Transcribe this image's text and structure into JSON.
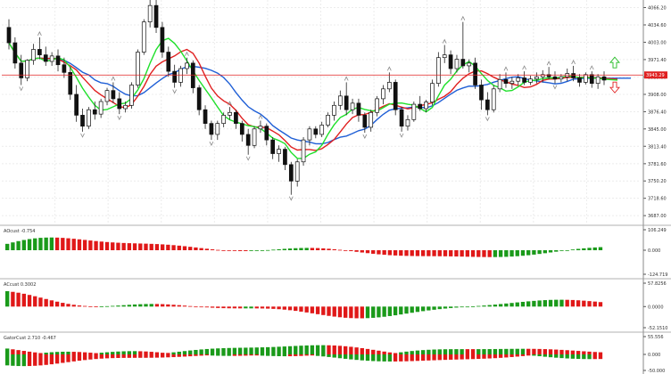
{
  "chart_data": {
    "type": "candlestick",
    "grid": true,
    "price_axis": {
      "ticks": [
        "4066.20",
        "4034.60",
        "4003.00",
        "3971.40",
        "3939.80",
        "3908.00",
        "3876.40",
        "3845.00",
        "3813.40",
        "3781.60",
        "3750.20",
        "3718.60",
        "3687.00"
      ],
      "ylim": [
        3671,
        4080
      ]
    },
    "price_line": {
      "value": 3943.29,
      "label": "3943.29",
      "color": "#e02020"
    },
    "arrows": {
      "up_color": "#22bb22",
      "down_color": "#e02020"
    },
    "candles": [
      [
        4030,
        4045,
        4002,
        3990
      ],
      [
        4002,
        4012,
        3965,
        3955
      ],
      [
        3965,
        3980,
        3938,
        3925
      ],
      [
        3938,
        3972,
        3970,
        3932
      ],
      [
        3970,
        4000,
        3990,
        3962
      ],
      [
        3990,
        4012,
        3980,
        3972
      ],
      [
        3980,
        3995,
        3968,
        3960
      ],
      [
        3968,
        3985,
        3978,
        3960
      ],
      [
        3978,
        3990,
        3962,
        3950
      ],
      [
        3962,
        3975,
        3948,
        3938
      ],
      [
        3948,
        3958,
        3908,
        3898
      ],
      [
        3908,
        3925,
        3870,
        3858
      ],
      [
        3870,
        3882,
        3850,
        3840
      ],
      [
        3850,
        3885,
        3880,
        3845
      ],
      [
        3880,
        3895,
        3872,
        3862
      ],
      [
        3872,
        3900,
        3895,
        3865
      ],
      [
        3895,
        3920,
        3915,
        3888
      ],
      [
        3915,
        3930,
        3900,
        3892
      ],
      [
        3900,
        3912,
        3882,
        3872
      ],
      [
        3882,
        3895,
        3888,
        3875
      ],
      [
        3888,
        3930,
        3925,
        3882
      ],
      [
        3925,
        3990,
        3985,
        3920
      ],
      [
        3985,
        4045,
        4040,
        3980
      ],
      [
        4040,
        4095,
        4070,
        4030
      ],
      [
        4070,
        4080,
        4030,
        4020
      ],
      [
        4030,
        4040,
        3985,
        3975
      ],
      [
        3985,
        3995,
        3950,
        3940
      ],
      [
        3950,
        3962,
        3930,
        3920
      ],
      [
        3930,
        3960,
        3955,
        3922
      ],
      [
        3955,
        3975,
        3965,
        3945
      ],
      [
        3965,
        3970,
        3920,
        3910
      ],
      [
        3920,
        3925,
        3880,
        3870
      ],
      [
        3880,
        3888,
        3855,
        3845
      ],
      [
        3855,
        3860,
        3835,
        3825
      ],
      [
        3835,
        3860,
        3855,
        3825
      ],
      [
        3855,
        3875,
        3870,
        3848
      ],
      [
        3870,
        3885,
        3875,
        3862
      ],
      [
        3875,
        3880,
        3855,
        3845
      ],
      [
        3855,
        3860,
        3835,
        3822
      ],
      [
        3835,
        3845,
        3815,
        3798
      ],
      [
        3815,
        3850,
        3845,
        3810
      ],
      [
        3845,
        3860,
        3850,
        3838
      ],
      [
        3850,
        3855,
        3825,
        3815
      ],
      [
        3825,
        3830,
        3800,
        3790
      ],
      [
        3800,
        3815,
        3808,
        3785
      ],
      [
        3808,
        3812,
        3780,
        3770
      ],
      [
        3780,
        3785,
        3750,
        3725
      ],
      [
        3750,
        3790,
        3785,
        3740
      ],
      [
        3785,
        3830,
        3825,
        3778
      ],
      [
        3825,
        3850,
        3845,
        3815
      ],
      [
        3845,
        3850,
        3835,
        3828
      ],
      [
        3835,
        3858,
        3852,
        3830
      ],
      [
        3852,
        3875,
        3870,
        3848
      ],
      [
        3870,
        3895,
        3888,
        3860
      ],
      [
        3888,
        3915,
        3905,
        3880
      ],
      [
        3905,
        3930,
        3880,
        3870
      ],
      [
        3880,
        3900,
        3892,
        3872
      ],
      [
        3892,
        3900,
        3870,
        3858
      ],
      [
        3870,
        3875,
        3848,
        3838
      ],
      [
        3848,
        3880,
        3875,
        3840
      ],
      [
        3875,
        3905,
        3900,
        3868
      ],
      [
        3900,
        3925,
        3918,
        3890
      ],
      [
        3918,
        3948,
        3930,
        3912
      ],
      [
        3930,
        3935,
        3880,
        3870
      ],
      [
        3880,
        3885,
        3850,
        3840
      ],
      [
        3850,
        3870,
        3862,
        3842
      ],
      [
        3862,
        3895,
        3890,
        3858
      ],
      [
        3890,
        3905,
        3882,
        3878
      ],
      [
        3882,
        3898,
        3894,
        3875
      ],
      [
        3894,
        3935,
        3928,
        3888
      ],
      [
        3928,
        3985,
        3975,
        3922
      ],
      [
        3975,
        3998,
        3980,
        3965
      ],
      [
        3980,
        3988,
        3955,
        3945
      ],
      [
        3955,
        3980,
        3972,
        3948
      ],
      [
        3972,
        4040,
        3960,
        3955
      ],
      [
        3960,
        3972,
        3965,
        3948
      ],
      [
        3965,
        3975,
        3925,
        3918
      ],
      [
        3925,
        3935,
        3898,
        3880
      ],
      [
        3898,
        3912,
        3880,
        3870
      ],
      [
        3880,
        3925,
        3918,
        3875
      ],
      [
        3918,
        3945,
        3935,
        3912
      ],
      [
        3935,
        3948,
        3928,
        3920
      ],
      [
        3928,
        3940,
        3932,
        3918
      ],
      [
        3932,
        3945,
        3938,
        3925
      ],
      [
        3938,
        3950,
        3930,
        3925
      ],
      [
        3930,
        3942,
        3936,
        3925
      ],
      [
        3936,
        3948,
        3940,
        3928
      ],
      [
        3940,
        3952,
        3944,
        3930
      ],
      [
        3944,
        3958,
        3940,
        3935
      ],
      [
        3940,
        3950,
        3936,
        3928
      ],
      [
        3936,
        3945,
        3940,
        3930
      ],
      [
        3940,
        3955,
        3946,
        3932
      ],
      [
        3946,
        3960,
        3938,
        3932
      ],
      [
        3938,
        3945,
        3930,
        3922
      ],
      [
        3930,
        3948,
        3944,
        3926
      ],
      [
        3944,
        3950,
        3928,
        3920
      ],
      [
        3928,
        3945,
        3940,
        3918
      ],
      [
        3940,
        3950,
        3934,
        3925
      ]
    ],
    "indicators": [
      {
        "label": "AOcust -0.754",
        "ticks": [
          "106.249",
          "0.000",
          "-124.719"
        ],
        "ylim": [
          -124.719,
          106.249
        ]
      },
      {
        "label": "ACcust 0.3002",
        "ticks": [
          "57.8256",
          "0.0000",
          "-52.1510"
        ],
        "ylim": [
          -52.151,
          57.8256
        ]
      },
      {
        "label": "GatorCust 2.710 -0.467",
        "ticks": [
          "55.556",
          "0.000",
          "-50.000"
        ],
        "ylim": [
          -50.0,
          55.556
        ]
      }
    ]
  }
}
